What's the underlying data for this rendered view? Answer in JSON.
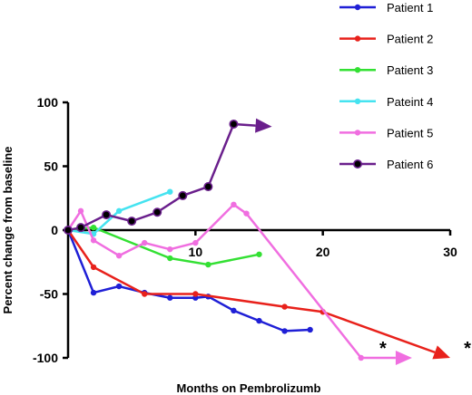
{
  "chart_data": {
    "type": "line",
    "title": "",
    "xlabel": "Months on Pembrolizumb",
    "ylabel": "Percent change from baseline",
    "xlim": [
      0,
      30
    ],
    "ylim": [
      -100,
      100
    ],
    "x_ticks": [
      10,
      20,
      30
    ],
    "y_ticks": [
      100,
      50,
      0,
      -50,
      -100
    ],
    "grid": false,
    "legend_position": "top-right",
    "series": [
      {
        "name": "Patient 1",
        "color": "#1f1fd6",
        "marker": "dot",
        "x": [
          0,
          2,
          4,
          6,
          8,
          10,
          11,
          13,
          15,
          17,
          19
        ],
        "y": [
          0,
          -49,
          -44,
          -49,
          -53,
          -53,
          -52,
          -63,
          -71,
          -79,
          -78
        ]
      },
      {
        "name": "Patient 2",
        "color": "#e8211b",
        "marker": "dot",
        "x": [
          0,
          2,
          6,
          10,
          17,
          20,
          30
        ],
        "y": [
          0,
          -29,
          -50,
          -50,
          -60,
          -64,
          -100
        ],
        "end_arrow": true,
        "end_annotation": "*"
      },
      {
        "name": "Patient 3",
        "color": "#33e033",
        "marker": "dot",
        "x": [
          0,
          2,
          8,
          11,
          15
        ],
        "y": [
          0,
          2,
          -22,
          -27,
          -19
        ]
      },
      {
        "name": "Pateint 4",
        "color": "#45e3f0",
        "marker": "dot",
        "x": [
          0,
          2,
          4,
          8
        ],
        "y": [
          0,
          -3,
          15,
          30
        ]
      },
      {
        "name": "Patient 5",
        "color": "#f06ee0",
        "marker": "dot",
        "x": [
          0,
          1,
          2,
          4,
          6,
          8,
          10,
          13,
          14,
          23,
          27
        ],
        "y": [
          0,
          15,
          -8,
          -20,
          -10,
          -15,
          -10,
          20,
          13,
          -100,
          -100
        ],
        "end_arrow": true,
        "end_annotation": "*"
      },
      {
        "name": "Patient 6",
        "color": "#6a1f8c",
        "marker": "ring",
        "x": [
          0,
          1,
          3,
          5,
          7,
          9,
          11,
          13,
          16
        ],
        "y": [
          0,
          2,
          12,
          7,
          14,
          27,
          34,
          83,
          81
        ],
        "end_arrow": true
      }
    ]
  }
}
